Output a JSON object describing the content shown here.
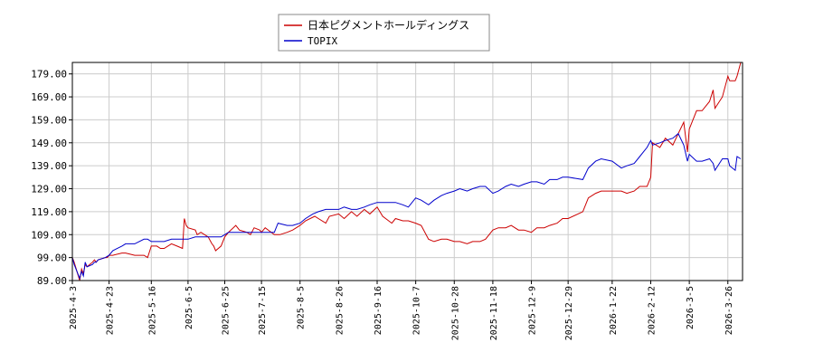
{
  "chart_data": {
    "type": "line",
    "title": "",
    "xlabel": "",
    "ylabel": "",
    "grid": true,
    "legend_position": "top-center",
    "xlim": [
      "2025-04-03",
      "2026-04-03"
    ],
    "ylim": [
      89,
      184
    ],
    "y_ticks": [
      "179.00",
      "169.00",
      "159.00",
      "149.00",
      "139.00",
      "129.00",
      "119.00",
      "109.00",
      "99.00",
      "89.00"
    ],
    "x_ticks": [
      "2025-4-3",
      "2025-4-23",
      "2025-5-16",
      "2025-6-5",
      "2025-6-25",
      "2025-7-15",
      "2025-8-5",
      "2025-8-26",
      "2025-9-16",
      "2025-10-7",
      "2025-10-28",
      "2025-11-18",
      "2025-12-9",
      "2025-12-29",
      "2026-1-22",
      "2026-2-12",
      "2026-3-5",
      "2026-3-26"
    ],
    "series": [
      {
        "name": "日本ピグメントホールディングス",
        "color": "#cc0000",
        "points": [
          [
            "2025-04-03",
            99
          ],
          [
            "2025-04-04",
            97
          ],
          [
            "2025-04-07",
            89
          ],
          [
            "2025-04-08",
            94
          ],
          [
            "2025-04-09",
            92
          ],
          [
            "2025-04-10",
            96
          ],
          [
            "2025-04-11",
            95
          ],
          [
            "2025-04-14",
            97
          ],
          [
            "2025-04-15",
            98
          ],
          [
            "2025-04-16",
            97
          ],
          [
            "2025-04-17",
            98
          ],
          [
            "2025-04-21",
            99
          ],
          [
            "2025-04-22",
            99
          ],
          [
            "2025-04-23",
            100
          ],
          [
            "2025-04-25",
            100
          ],
          [
            "2025-04-30",
            101
          ],
          [
            "2025-05-02",
            101
          ],
          [
            "2025-05-07",
            100
          ],
          [
            "2025-05-12",
            100
          ],
          [
            "2025-05-14",
            99
          ],
          [
            "2025-05-16",
            104
          ],
          [
            "2025-05-19",
            104
          ],
          [
            "2025-05-21",
            103
          ],
          [
            "2025-05-23",
            103
          ],
          [
            "2025-05-27",
            105
          ],
          [
            "2025-05-30",
            104
          ],
          [
            "2025-06-02",
            103
          ],
          [
            "2025-06-03",
            116
          ],
          [
            "2025-06-04",
            113
          ],
          [
            "2025-06-05",
            112
          ],
          [
            "2025-06-09",
            111
          ],
          [
            "2025-06-10",
            109
          ],
          [
            "2025-06-12",
            110
          ],
          [
            "2025-06-16",
            108
          ],
          [
            "2025-06-18",
            105
          ],
          [
            "2025-06-19",
            104
          ],
          [
            "2025-06-20",
            102
          ],
          [
            "2025-06-23",
            104
          ],
          [
            "2025-06-25",
            108
          ],
          [
            "2025-06-27",
            110
          ],
          [
            "2025-07-01",
            113
          ],
          [
            "2025-07-03",
            111
          ],
          [
            "2025-07-07",
            110
          ],
          [
            "2025-07-09",
            109
          ],
          [
            "2025-07-11",
            112
          ],
          [
            "2025-07-14",
            111
          ],
          [
            "2025-07-15",
            110
          ],
          [
            "2025-07-17",
            112
          ],
          [
            "2025-07-22",
            109
          ],
          [
            "2025-07-25",
            109
          ],
          [
            "2025-07-29",
            110
          ],
          [
            "2025-08-01",
            111
          ],
          [
            "2025-08-05",
            113
          ],
          [
            "2025-08-08",
            115
          ],
          [
            "2025-08-13",
            117
          ],
          [
            "2025-08-15",
            116
          ],
          [
            "2025-08-19",
            114
          ],
          [
            "2025-08-21",
            117
          ],
          [
            "2025-08-26",
            118
          ],
          [
            "2025-08-29",
            116
          ],
          [
            "2025-09-02",
            119
          ],
          [
            "2025-09-05",
            117
          ],
          [
            "2025-09-09",
            120
          ],
          [
            "2025-09-12",
            118
          ],
          [
            "2025-09-16",
            121
          ],
          [
            "2025-09-19",
            117
          ],
          [
            "2025-09-24",
            114
          ],
          [
            "2025-09-26",
            116
          ],
          [
            "2025-09-30",
            115
          ],
          [
            "2025-10-03",
            115
          ],
          [
            "2025-10-07",
            114
          ],
          [
            "2025-10-10",
            113
          ],
          [
            "2025-10-14",
            107
          ],
          [
            "2025-10-17",
            106
          ],
          [
            "2025-10-21",
            107
          ],
          [
            "2025-10-24",
            107
          ],
          [
            "2025-10-28",
            106
          ],
          [
            "2025-10-31",
            106
          ],
          [
            "2025-11-04",
            105
          ],
          [
            "2025-11-07",
            106
          ],
          [
            "2025-11-11",
            106
          ],
          [
            "2025-11-14",
            107
          ],
          [
            "2025-11-18",
            111
          ],
          [
            "2025-11-21",
            112
          ],
          [
            "2025-11-25",
            112
          ],
          [
            "2025-11-28",
            113
          ],
          [
            "2025-12-02",
            111
          ],
          [
            "2025-12-05",
            111
          ],
          [
            "2025-12-09",
            110
          ],
          [
            "2025-12-12",
            112
          ],
          [
            "2025-12-16",
            112
          ],
          [
            "2025-12-19",
            113
          ],
          [
            "2025-12-23",
            114
          ],
          [
            "2025-12-26",
            116
          ],
          [
            "2025-12-29",
            116
          ],
          [
            "2026-01-06",
            119
          ],
          [
            "2026-01-09",
            125
          ],
          [
            "2026-01-13",
            127
          ],
          [
            "2026-01-16",
            128
          ],
          [
            "2026-01-22",
            128
          ],
          [
            "2026-01-27",
            128
          ],
          [
            "2026-01-30",
            127
          ],
          [
            "2026-02-03",
            128
          ],
          [
            "2026-02-06",
            130
          ],
          [
            "2026-02-10",
            130
          ],
          [
            "2026-02-12",
            134
          ],
          [
            "2026-02-13",
            149
          ],
          [
            "2026-02-17",
            147
          ],
          [
            "2026-02-20",
            151
          ],
          [
            "2026-02-24",
            148
          ],
          [
            "2026-02-27",
            153
          ],
          [
            "2026-03-02",
            158
          ],
          [
            "2026-03-04",
            145
          ],
          [
            "2026-03-05",
            155
          ],
          [
            "2026-03-09",
            163
          ],
          [
            "2026-03-12",
            163
          ],
          [
            "2026-03-16",
            167
          ],
          [
            "2026-03-18",
            172
          ],
          [
            "2026-03-19",
            164
          ],
          [
            "2026-03-23",
            169
          ],
          [
            "2026-03-26",
            178
          ],
          [
            "2026-03-27",
            176
          ],
          [
            "2026-03-30",
            176
          ],
          [
            "2026-03-31",
            178
          ],
          [
            "2026-04-02",
            184
          ]
        ]
      },
      {
        "name": "TOPIX",
        "color": "#0000cc",
        "points": [
          [
            "2025-04-03",
            99
          ],
          [
            "2025-04-04",
            96
          ],
          [
            "2025-04-07",
            90
          ],
          [
            "2025-04-08",
            93
          ],
          [
            "2025-04-09",
            91
          ],
          [
            "2025-04-10",
            97
          ],
          [
            "2025-04-11",
            95
          ],
          [
            "2025-04-14",
            96
          ],
          [
            "2025-04-15",
            97
          ],
          [
            "2025-04-16",
            97
          ],
          [
            "2025-04-17",
            98
          ],
          [
            "2025-04-21",
            99
          ],
          [
            "2025-04-23",
            100
          ],
          [
            "2025-04-25",
            102
          ],
          [
            "2025-04-30",
            104
          ],
          [
            "2025-05-02",
            105
          ],
          [
            "2025-05-07",
            105
          ],
          [
            "2025-05-12",
            107
          ],
          [
            "2025-05-14",
            107
          ],
          [
            "2025-05-16",
            106
          ],
          [
            "2025-05-19",
            106
          ],
          [
            "2025-05-21",
            106
          ],
          [
            "2025-05-23",
            106
          ],
          [
            "2025-05-27",
            107
          ],
          [
            "2025-05-30",
            107
          ],
          [
            "2025-06-02",
            107
          ],
          [
            "2025-06-05",
            107
          ],
          [
            "2025-06-09",
            108
          ],
          [
            "2025-06-12",
            108
          ],
          [
            "2025-06-16",
            108
          ],
          [
            "2025-06-19",
            108
          ],
          [
            "2025-06-23",
            108
          ],
          [
            "2025-06-25",
            109
          ],
          [
            "2025-06-27",
            110
          ],
          [
            "2025-07-01",
            110
          ],
          [
            "2025-07-04",
            110
          ],
          [
            "2025-07-08",
            110
          ],
          [
            "2025-07-11",
            110
          ],
          [
            "2025-07-15",
            110
          ],
          [
            "2025-07-18",
            110
          ],
          [
            "2025-07-22",
            110
          ],
          [
            "2025-07-24",
            114
          ],
          [
            "2025-07-29",
            113
          ],
          [
            "2025-08-01",
            113
          ],
          [
            "2025-08-05",
            114
          ],
          [
            "2025-08-08",
            116
          ],
          [
            "2025-08-12",
            118
          ],
          [
            "2025-08-15",
            119
          ],
          [
            "2025-08-19",
            120
          ],
          [
            "2025-08-22",
            120
          ],
          [
            "2025-08-26",
            120
          ],
          [
            "2025-08-29",
            121
          ],
          [
            "2025-09-02",
            120
          ],
          [
            "2025-09-05",
            120
          ],
          [
            "2025-09-09",
            121
          ],
          [
            "2025-09-12",
            122
          ],
          [
            "2025-09-16",
            123
          ],
          [
            "2025-09-19",
            123
          ],
          [
            "2025-09-24",
            123
          ],
          [
            "2025-09-26",
            123
          ],
          [
            "2025-09-30",
            122
          ],
          [
            "2025-10-03",
            121
          ],
          [
            "2025-10-07",
            125
          ],
          [
            "2025-10-10",
            124
          ],
          [
            "2025-10-14",
            122
          ],
          [
            "2025-10-17",
            124
          ],
          [
            "2025-10-21",
            126
          ],
          [
            "2025-10-24",
            127
          ],
          [
            "2025-10-28",
            128
          ],
          [
            "2025-10-31",
            129
          ],
          [
            "2025-11-04",
            128
          ],
          [
            "2025-11-07",
            129
          ],
          [
            "2025-11-11",
            130
          ],
          [
            "2025-11-14",
            130
          ],
          [
            "2025-11-18",
            127
          ],
          [
            "2025-11-21",
            128
          ],
          [
            "2025-11-25",
            130
          ],
          [
            "2025-11-28",
            131
          ],
          [
            "2025-12-02",
            130
          ],
          [
            "2025-12-05",
            131
          ],
          [
            "2025-12-09",
            132
          ],
          [
            "2025-12-12",
            132
          ],
          [
            "2025-12-16",
            131
          ],
          [
            "2025-12-19",
            133
          ],
          [
            "2025-12-23",
            133
          ],
          [
            "2025-12-26",
            134
          ],
          [
            "2025-12-29",
            134
          ],
          [
            "2026-01-06",
            133
          ],
          [
            "2026-01-09",
            138
          ],
          [
            "2026-01-13",
            141
          ],
          [
            "2026-01-16",
            142
          ],
          [
            "2026-01-22",
            141
          ],
          [
            "2026-01-27",
            138
          ],
          [
            "2026-01-30",
            139
          ],
          [
            "2026-02-03",
            140
          ],
          [
            "2026-02-06",
            143
          ],
          [
            "2026-02-10",
            147
          ],
          [
            "2026-02-12",
            150
          ],
          [
            "2026-02-13",
            148
          ],
          [
            "2026-02-17",
            149
          ],
          [
            "2026-02-20",
            150
          ],
          [
            "2026-02-24",
            151
          ],
          [
            "2026-02-27",
            153
          ],
          [
            "2026-03-02",
            148
          ],
          [
            "2026-03-04",
            141
          ],
          [
            "2026-03-05",
            144
          ],
          [
            "2026-03-09",
            141
          ],
          [
            "2026-03-12",
            141
          ],
          [
            "2026-03-16",
            142
          ],
          [
            "2026-03-18",
            140
          ],
          [
            "2026-03-19",
            137
          ],
          [
            "2026-03-23",
            142
          ],
          [
            "2026-03-26",
            142
          ],
          [
            "2026-03-27",
            139
          ],
          [
            "2026-03-30",
            137
          ],
          [
            "2026-03-31",
            143
          ],
          [
            "2026-04-02",
            142
          ]
        ]
      }
    ]
  }
}
